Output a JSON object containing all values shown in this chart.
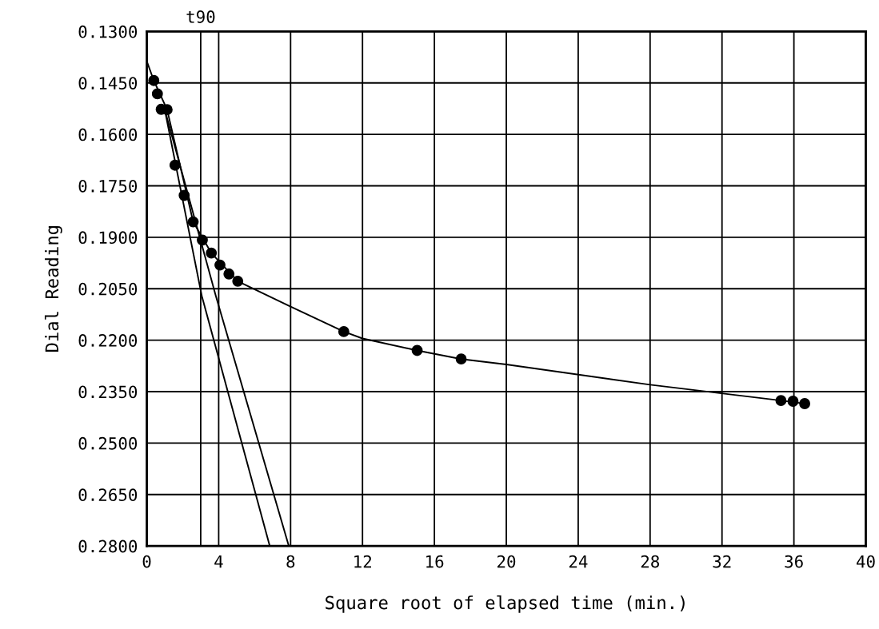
{
  "chart_data": {
    "type": "line",
    "xlabel": "Square root of elapsed time (min.)",
    "ylabel": "Dial Reading",
    "xlim": [
      0,
      40
    ],
    "xticks": [
      0,
      4,
      8,
      12,
      16,
      20,
      24,
      28,
      32,
      36,
      40
    ],
    "ylim": [
      0.28,
      0.13
    ],
    "yticks": [
      {
        "value": 0.13,
        "label": "0.1300"
      },
      {
        "value": 0.145,
        "label": "0.1450"
      },
      {
        "value": 0.16,
        "label": "0.1600"
      },
      {
        "value": 0.175,
        "label": "0.1750"
      },
      {
        "value": 0.19,
        "label": "0.1900"
      },
      {
        "value": 0.205,
        "label": "0.2050"
      },
      {
        "value": 0.22,
        "label": "0.2200"
      },
      {
        "value": 0.235,
        "label": "0.2350"
      },
      {
        "value": 0.25,
        "label": "0.2500"
      },
      {
        "value": 0.265,
        "label": "0.2650"
      },
      {
        "value": 0.28,
        "label": "0.2800"
      }
    ],
    "grid": true,
    "ref_lines": [
      {
        "axis": "x",
        "value": 3.0,
        "label": "t90",
        "color": "#000000"
      }
    ],
    "series": [
      {
        "type": "scatter",
        "color": "#000000",
        "marker": "circle",
        "x": [
          0.39,
          0.59,
          0.8,
          1.13,
          1.57,
          2.08,
          2.58,
          3.09,
          3.59,
          4.07,
          4.57,
          5.06,
          10.96,
          15.04,
          17.49,
          35.28,
          35.95,
          36.6
        ],
        "values": [
          0.1443,
          0.1482,
          0.1527,
          0.1528,
          0.169,
          0.1778,
          0.1855,
          0.1908,
          0.1946,
          0.1981,
          0.2007,
          0.2028,
          0.2175,
          0.223,
          0.2255,
          0.2376,
          0.2378,
          0.2385
        ]
      },
      {
        "color": "#000000",
        "x": [
          0,
          0.39,
          1.13,
          2.58,
          3.59,
          5.06,
          8,
          10.96,
          12,
          15.04,
          17.49,
          20,
          28,
          35.28,
          36.6
        ],
        "values": [
          0.1387,
          0.1443,
          0.1528,
          0.1855,
          0.1946,
          0.2028,
          0.2102,
          0.2175,
          0.2195,
          0.223,
          0.2255,
          0.2271,
          0.233,
          0.2376,
          0.2385
        ]
      },
      {
        "color": "#000000",
        "x": [
          1.0,
          3.06,
          6.84
        ],
        "values": [
          0.1528,
          0.2071,
          0.28
        ]
      },
      {
        "color": "#000000",
        "x": [
          1.0,
          3.84,
          7.9
        ],
        "values": [
          0.1528,
          0.2071,
          0.28
        ]
      }
    ]
  }
}
